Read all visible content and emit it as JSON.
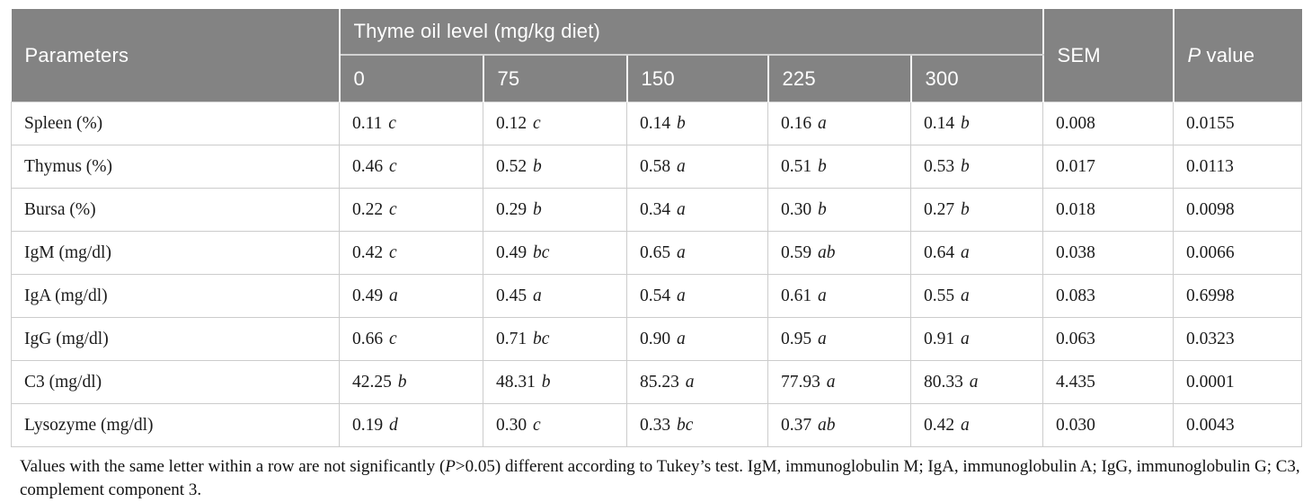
{
  "table": {
    "header": {
      "parameters": "Parameters",
      "group": "Thyme oil level (mg/kg diet)",
      "levels": [
        "0",
        "75",
        "150",
        "225",
        "300"
      ],
      "sem": "SEM",
      "p_italic": "P",
      "p_rest": "value"
    },
    "rows": [
      {
        "param": "Spleen (%)",
        "values": [
          {
            "v": "0.11",
            "l": "c"
          },
          {
            "v": "0.12",
            "l": "c"
          },
          {
            "v": "0.14",
            "l": "b"
          },
          {
            "v": "0.16",
            "l": "a"
          },
          {
            "v": "0.14",
            "l": "b"
          }
        ],
        "sem": "0.008",
        "p": "0.0155"
      },
      {
        "param": "Thymus (%)",
        "values": [
          {
            "v": "0.46",
            "l": "c"
          },
          {
            "v": "0.52",
            "l": "b"
          },
          {
            "v": "0.58",
            "l": "a"
          },
          {
            "v": "0.51",
            "l": "b"
          },
          {
            "v": "0.53",
            "l": "b"
          }
        ],
        "sem": "0.017",
        "p": "0.0113"
      },
      {
        "param": "Bursa (%)",
        "values": [
          {
            "v": "0.22",
            "l": "c"
          },
          {
            "v": "0.29",
            "l": "b"
          },
          {
            "v": "0.34",
            "l": "a"
          },
          {
            "v": "0.30",
            "l": "b"
          },
          {
            "v": "0.27",
            "l": "b"
          }
        ],
        "sem": "0.018",
        "p": "0.0098"
      },
      {
        "param": "IgM (mg/dl)",
        "values": [
          {
            "v": "0.42",
            "l": "c"
          },
          {
            "v": "0.49",
            "l": "bc"
          },
          {
            "v": "0.65",
            "l": "a"
          },
          {
            "v": "0.59",
            "l": "ab"
          },
          {
            "v": "0.64",
            "l": "a"
          }
        ],
        "sem": "0.038",
        "p": "0.0066"
      },
      {
        "param": "IgA (mg/dl)",
        "values": [
          {
            "v": "0.49",
            "l": "a"
          },
          {
            "v": "0.45",
            "l": "a"
          },
          {
            "v": "0.54",
            "l": "a"
          },
          {
            "v": "0.61",
            "l": "a"
          },
          {
            "v": "0.55",
            "l": "a"
          }
        ],
        "sem": "0.083",
        "p": "0.6998"
      },
      {
        "param": "IgG (mg/dl)",
        "values": [
          {
            "v": "0.66",
            "l": "c"
          },
          {
            "v": "0.71",
            "l": "bc"
          },
          {
            "v": "0.90",
            "l": "a"
          },
          {
            "v": "0.95",
            "l": "a"
          },
          {
            "v": "0.91",
            "l": "a"
          }
        ],
        "sem": "0.063",
        "p": "0.0323"
      },
      {
        "param": "C3 (mg/dl)",
        "values": [
          {
            "v": "42.25",
            "l": "b"
          },
          {
            "v": "48.31",
            "l": "b"
          },
          {
            "v": "85.23",
            "l": "a"
          },
          {
            "v": "77.93",
            "l": "a"
          },
          {
            "v": "80.33",
            "l": "a"
          }
        ],
        "sem": "4.435",
        "p": "0.0001"
      },
      {
        "param": "Lysozyme (mg/dl)",
        "values": [
          {
            "v": "0.19",
            "l": "d"
          },
          {
            "v": "0.30",
            "l": "c"
          },
          {
            "v": "0.33",
            "l": "bc"
          },
          {
            "v": "0.37",
            "l": "ab"
          },
          {
            "v": "0.42",
            "l": "a"
          }
        ],
        "sem": "0.030",
        "p": "0.0043"
      }
    ]
  },
  "footnote": {
    "pre": "Values with the same letter within a row are not significantly (",
    "p_italic": "P",
    "post": ">0.05) different according to Tukey’s test. IgM, immunoglobulin M; IgA, immunoglobulin A; IgG, immunoglobulin G; C3, complement component 3."
  },
  "colors": {
    "header_bg": "#838383",
    "header_text": "#ffffff",
    "body_border": "#cccccc",
    "body_text": "#1b1b1b"
  }
}
